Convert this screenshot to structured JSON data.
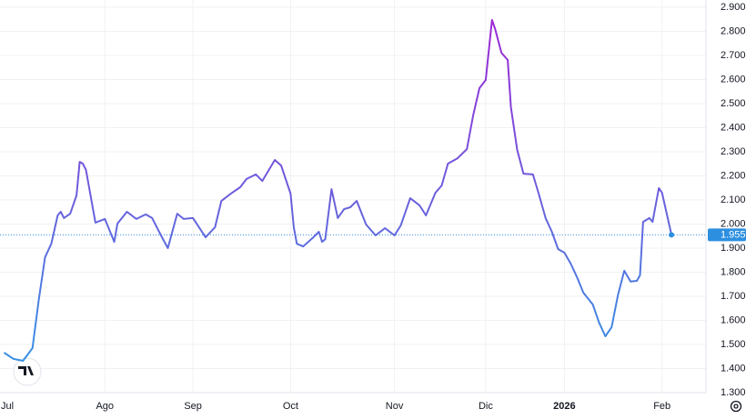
{
  "chart_data": {
    "type": "line",
    "x": [
      -1,
      2,
      5,
      8,
      10,
      12,
      14,
      16,
      17,
      18,
      20,
      22,
      23,
      24,
      25,
      28,
      31,
      34,
      35,
      38,
      41,
      44,
      46,
      49,
      51,
      54,
      56,
      59,
      63,
      66,
      68,
      71,
      74,
      76,
      79,
      81,
      85,
      87,
      90,
      91,
      92,
      94,
      97,
      99,
      100,
      101,
      103,
      105,
      107,
      109,
      111,
      114,
      117,
      120,
      123,
      125,
      128,
      131,
      133,
      136,
      138,
      140,
      143,
      146,
      148,
      150,
      152,
      154,
      155,
      157,
      159,
      160,
      162,
      164,
      167,
      169,
      171,
      173,
      175,
      177,
      179,
      181,
      183,
      186,
      188,
      190,
      192,
      194,
      196,
      198,
      200,
      201,
      202,
      204,
      205,
      207,
      208,
      211
    ],
    "values": [
      1.466,
      1.44,
      1.432,
      1.485,
      1.685,
      1.862,
      1.918,
      2.036,
      2.051,
      2.025,
      2.043,
      2.119,
      2.258,
      2.251,
      2.225,
      2.006,
      2.021,
      1.926,
      2.002,
      2.051,
      2.021,
      2.04,
      2.025,
      1.949,
      1.9,
      2.043,
      2.021,
      2.025,
      1.945,
      1.987,
      2.096,
      2.126,
      2.153,
      2.187,
      2.206,
      2.179,
      2.266,
      2.243,
      2.126,
      1.987,
      1.918,
      1.907,
      1.942,
      1.968,
      1.926,
      1.937,
      2.145,
      2.025,
      2.062,
      2.07,
      2.096,
      1.998,
      1.953,
      1.983,
      1.953,
      1.994,
      2.107,
      2.077,
      2.036,
      2.13,
      2.16,
      2.251,
      2.273,
      2.311,
      2.451,
      2.564,
      2.598,
      2.847,
      2.809,
      2.711,
      2.681,
      2.485,
      2.308,
      2.209,
      2.206,
      2.119,
      2.025,
      1.968,
      1.896,
      1.881,
      1.836,
      1.779,
      1.715,
      1.666,
      1.591,
      1.534,
      1.572,
      1.704,
      1.806,
      1.761,
      1.764,
      1.787,
      2.009,
      2.025,
      2.009,
      2.149,
      2.13,
      1.955
    ],
    "xlim": [
      -2,
      222
    ],
    "xticks": [
      {
        "value": 0,
        "label": "Jul"
      },
      {
        "value": 31,
        "label": "Ago"
      },
      {
        "value": 59,
        "label": "Sep"
      },
      {
        "value": 90,
        "label": "Oct"
      },
      {
        "value": 123,
        "label": "Nov"
      },
      {
        "value": 152,
        "label": "Dic"
      },
      {
        "value": 177,
        "label": "2026"
      },
      {
        "value": 208,
        "label": "Feb"
      }
    ],
    "ylim": [
      1.3,
      2.9
    ],
    "yticks": [
      {
        "value": 1.3,
        "label": "1.300"
      },
      {
        "value": 1.4,
        "label": "1.400"
      },
      {
        "value": 1.5,
        "label": "1.500"
      },
      {
        "value": 1.6,
        "label": "1.600"
      },
      {
        "value": 1.7,
        "label": "1.700"
      },
      {
        "value": 1.8,
        "label": "1.800"
      },
      {
        "value": 1.9,
        "label": "1.900"
      },
      {
        "value": 2,
        "label": "2.000"
      },
      {
        "value": 2.1,
        "label": "2.100"
      },
      {
        "value": 2.2,
        "label": "2.200"
      },
      {
        "value": 2.3,
        "label": "2.300"
      },
      {
        "value": 2.4,
        "label": "2.400"
      },
      {
        "value": 2.5,
        "label": "2.500"
      },
      {
        "value": 2.6,
        "label": "2.600"
      },
      {
        "value": 2.7,
        "label": "2.700"
      },
      {
        "value": 2.8,
        "label": "2.800"
      },
      {
        "value": 2.9,
        "label": "2.900"
      }
    ],
    "price_line": {
      "value": 1.955,
      "label": "1.955",
      "color": "#2d8fe0"
    },
    "line_colors": [
      "#a124d6",
      "#6b5fdc",
      "#2d9be6"
    ],
    "grid": true
  }
}
